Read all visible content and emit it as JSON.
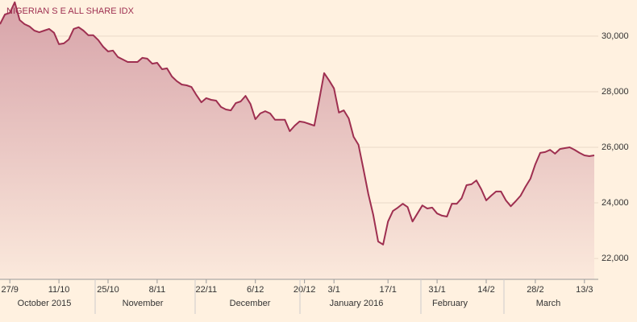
{
  "chart_data": {
    "type": "area",
    "title": "NIGERIAN S E ALL SHARE IDX",
    "categories": [
      null,
      null,
      "27/9",
      null,
      null,
      null,
      null,
      null,
      null,
      null,
      null,
      null,
      "11/10",
      null,
      null,
      null,
      null,
      null,
      null,
      null,
      null,
      null,
      "25/10",
      null,
      null,
      null,
      null,
      null,
      null,
      null,
      null,
      null,
      "8/11",
      null,
      null,
      null,
      null,
      null,
      null,
      null,
      null,
      null,
      "22/11",
      null,
      null,
      null,
      null,
      null,
      null,
      null,
      null,
      null,
      "6/12",
      null,
      null,
      null,
      null,
      null,
      null,
      null,
      null,
      null,
      "20/12",
      null,
      null,
      null,
      null,
      null,
      "3/1",
      null,
      null,
      null,
      null,
      null,
      null,
      null,
      null,
      null,
      null,
      "17/1",
      null,
      null,
      null,
      null,
      null,
      null,
      null,
      null,
      null,
      "31/1",
      null,
      null,
      null,
      null,
      null,
      null,
      null,
      null,
      null,
      "14/2",
      null,
      null,
      null,
      null,
      null,
      null,
      null,
      null,
      null,
      "28/2",
      null,
      null,
      null,
      null,
      null,
      null,
      null,
      null,
      null,
      "13/3",
      null,
      null
    ],
    "month_labels": [
      "October 2015",
      "November",
      "December",
      "January 2016",
      "February",
      "March"
    ],
    "values": [
      30430,
      30780,
      30840,
      31220,
      30580,
      30430,
      30350,
      30200,
      30140,
      30200,
      30260,
      30120,
      29710,
      29740,
      29880,
      30260,
      30320,
      30200,
      30030,
      30030,
      29860,
      29620,
      29450,
      29480,
      29250,
      29160,
      29070,
      29070,
      29070,
      29220,
      29190,
      29010,
      29040,
      28810,
      28840,
      28550,
      28380,
      28260,
      28230,
      28170,
      27880,
      27620,
      27770,
      27710,
      27680,
      27450,
      27360,
      27330,
      27590,
      27650,
      27850,
      27560,
      27010,
      27220,
      27300,
      27220,
      26990,
      26990,
      26990,
      26580,
      26780,
      26930,
      26900,
      26840,
      26780,
      27710,
      28670,
      28410,
      28120,
      27250,
      27330,
      27040,
      26380,
      26090,
      25220,
      24320,
      23570,
      22610,
      22500,
      23330,
      23710,
      23830,
      23970,
      23850,
      23330,
      23620,
      23910,
      23800,
      23830,
      23620,
      23540,
      23510,
      23970,
      23970,
      24170,
      24640,
      24670,
      24810,
      24490,
      24090,
      24260,
      24410,
      24410,
      24090,
      23880,
      24060,
      24260,
      24580,
      24870,
      25390,
      25800,
      25830,
      25910,
      25770,
      25940,
      25970,
      26000,
      25910,
      25800,
      25710,
      25680,
      25710
    ],
    "color": "#9e2f50",
    "ylim": [
      21250,
      31300
    ],
    "yticks": [
      {
        "value": 22000,
        "label": "22,000"
      },
      {
        "value": 24000,
        "label": "24,000"
      },
      {
        "value": 26000,
        "label": "26,000"
      },
      {
        "value": 28000,
        "label": "28,000"
      },
      {
        "value": 30000,
        "label": "30,000"
      }
    ],
    "grid": true
  }
}
